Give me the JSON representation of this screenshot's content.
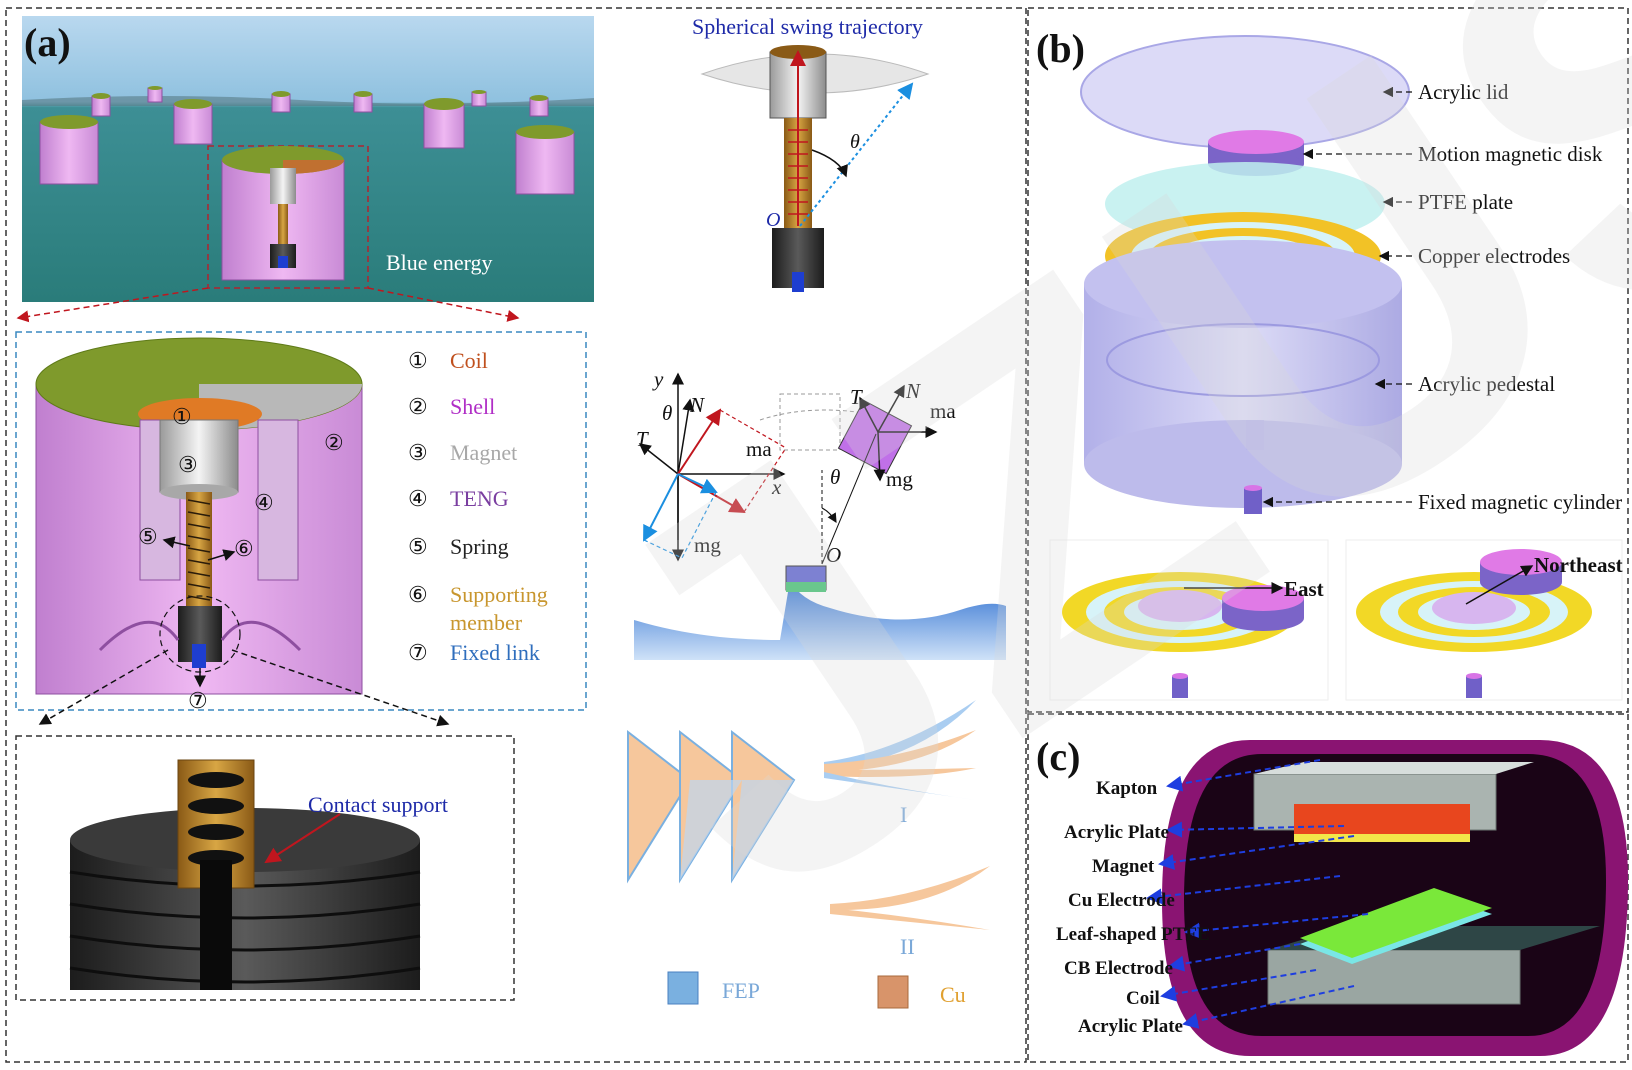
{
  "panel_a": {
    "label": "(a)",
    "scene_caption": "Blue energy",
    "swing_title": "Spherical swing trajectory",
    "swing_angle": "θ",
    "swing_origin": "O",
    "legend": [
      {
        "num": "①",
        "label": "Coil",
        "color": "#c0501e"
      },
      {
        "num": "②",
        "label": "Shell",
        "color": "#b02ec6"
      },
      {
        "num": "③",
        "label": "Magnet",
        "color": "#a8a8a8"
      },
      {
        "num": "④",
        "label": "TENG",
        "color": "#7a3ea0"
      },
      {
        "num": "⑤",
        "label": "Spring",
        "color": "#222222"
      },
      {
        "num": "⑥",
        "label": "Supporting",
        "label2": "member",
        "color": "#c8962e"
      },
      {
        "num": "⑦",
        "label": "Fixed link",
        "color": "#2f6ebd"
      }
    ],
    "part_numbers": [
      "①",
      "②",
      "③",
      "④",
      "⑤",
      "⑥",
      "⑦"
    ],
    "contact_support": "Contact support",
    "force": {
      "y": "y",
      "x": "x",
      "N": "N",
      "T": "T",
      "ma": "ma",
      "mg": "mg",
      "theta": "θ",
      "O": "O"
    },
    "film_labels": {
      "one": "I",
      "two": "II",
      "fep": "FEP",
      "cu": "Cu"
    }
  },
  "panel_b": {
    "label": "(b)",
    "parts": [
      "Acrylic lid",
      "Motion magnetic disk",
      "PTFE plate",
      "Copper electrodes",
      "Acrylic pedestal",
      "Fixed magnetic cylinder"
    ],
    "direction_east": "East",
    "direction_northeast": "Northeast"
  },
  "panel_c": {
    "label": "(c)",
    "parts": [
      "Kapton",
      "Acrylic Plate",
      "Magnet",
      "Cu Electrode",
      "Leaf-shaped PTFE",
      "CB Electrode",
      "Coil",
      "Acrylic Plate"
    ]
  },
  "watermark": "JZUS"
}
